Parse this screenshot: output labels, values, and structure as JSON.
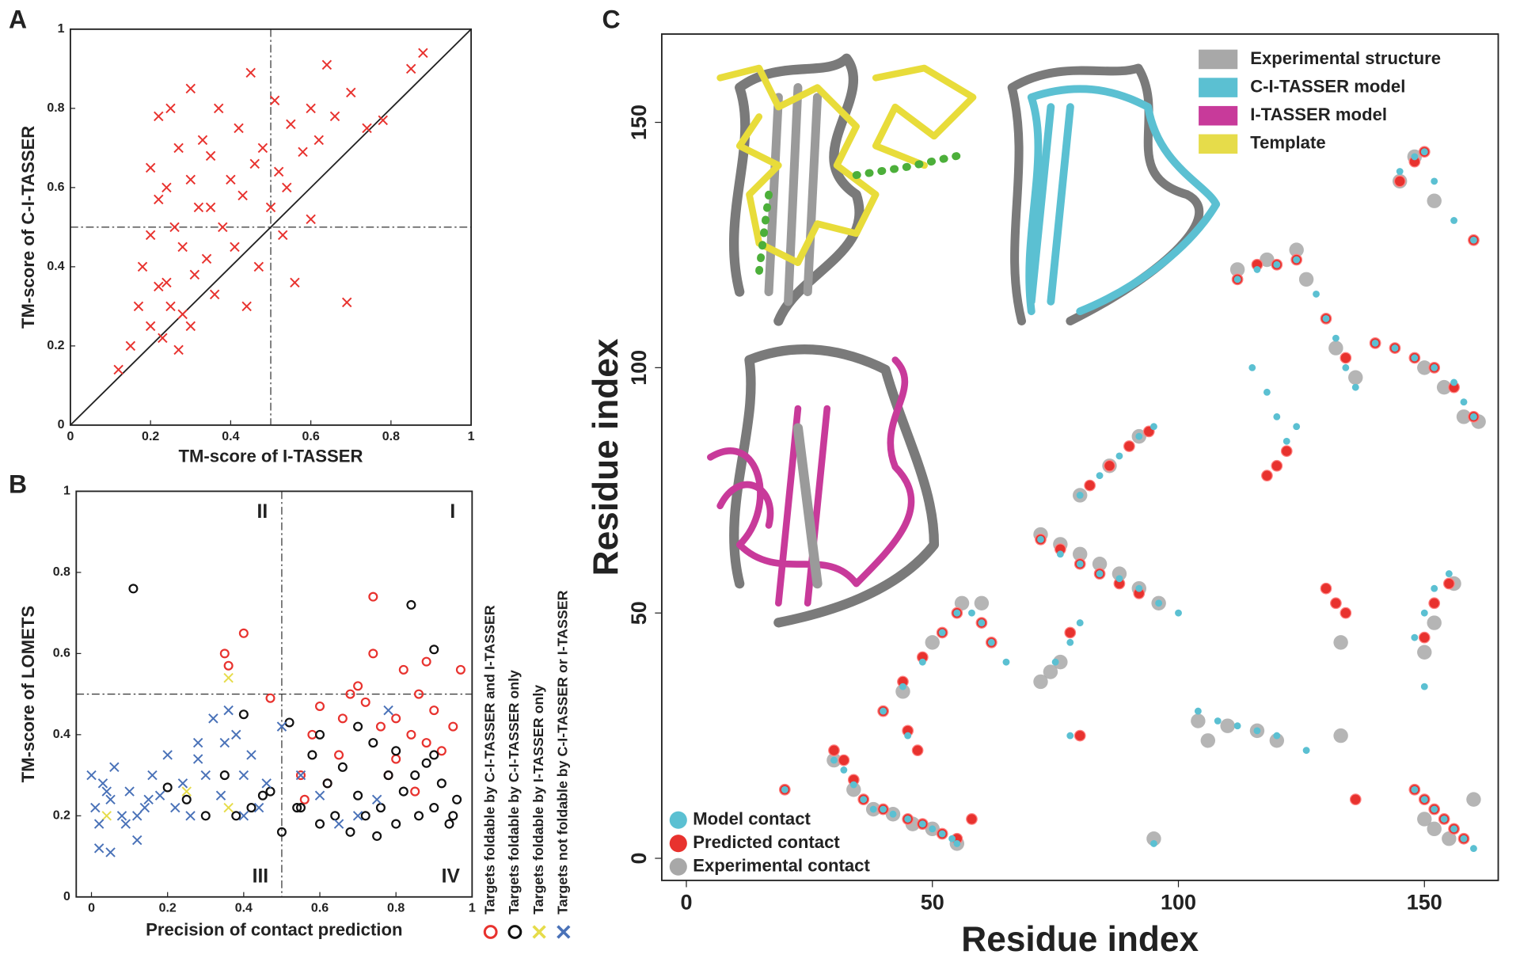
{
  "chart_data": [
    {
      "type": "scatter",
      "panel_label": "A",
      "xlabel": "TM-score of I-TASSER",
      "ylabel": "TM-score of C-I-TASSER",
      "xlim": [
        0,
        1
      ],
      "ylim": [
        0,
        1
      ],
      "xticks": [
        0,
        0.2,
        0.4,
        0.6,
        0.8,
        1
      ],
      "yticks": [
        0,
        0.2,
        0.4,
        0.6,
        0.8,
        1
      ],
      "threshold_x": 0.5,
      "threshold_y": 0.5,
      "diagonal": true,
      "color": "#e8322e",
      "marker": "x",
      "x": [
        0.12,
        0.15,
        0.17,
        0.18,
        0.2,
        0.2,
        0.22,
        0.22,
        0.23,
        0.24,
        0.25,
        0.25,
        0.26,
        0.27,
        0.28,
        0.28,
        0.3,
        0.3,
        0.31,
        0.32,
        0.33,
        0.34,
        0.35,
        0.36,
        0.37,
        0.38,
        0.4,
        0.41,
        0.42,
        0.43,
        0.45,
        0.46,
        0.47,
        0.48,
        0.5,
        0.51,
        0.52,
        0.53,
        0.55,
        0.56,
        0.58,
        0.6,
        0.62,
        0.64,
        0.66,
        0.7,
        0.74,
        0.78,
        0.85,
        0.88,
        0.2,
        0.24,
        0.3,
        0.35,
        0.27,
        0.22,
        0.44,
        0.54,
        0.6,
        0.69
      ],
      "y": [
        0.14,
        0.2,
        0.3,
        0.4,
        0.25,
        0.65,
        0.35,
        0.78,
        0.22,
        0.6,
        0.3,
        0.8,
        0.5,
        0.7,
        0.28,
        0.45,
        0.62,
        0.85,
        0.38,
        0.55,
        0.72,
        0.42,
        0.68,
        0.33,
        0.8,
        0.5,
        0.62,
        0.45,
        0.75,
        0.58,
        0.89,
        0.66,
        0.4,
        0.7,
        0.55,
        0.82,
        0.64,
        0.48,
        0.76,
        0.36,
        0.69,
        0.8,
        0.72,
        0.91,
        0.78,
        0.84,
        0.75,
        0.77,
        0.9,
        0.94,
        0.48,
        0.36,
        0.25,
        0.55,
        0.19,
        0.57,
        0.3,
        0.6,
        0.52,
        0.31
      ]
    },
    {
      "type": "scatter",
      "panel_label": "B",
      "xlabel": "Precision of contact prediction",
      "ylabel": "TM-score of LOMETS",
      "xlim": [
        -0.04,
        1.0
      ],
      "ylim": [
        0,
        1
      ],
      "xticks": [
        0,
        0.2,
        0.4,
        0.6,
        0.8,
        1
      ],
      "yticks": [
        0,
        0.2,
        0.4,
        0.6,
        0.8,
        1
      ],
      "threshold_x": 0.5,
      "threshold_y": 0.5,
      "legend": "right",
      "quadrant_labels": [
        "I",
        "II",
        "III",
        "IV"
      ],
      "series": [
        {
          "name": "Targets foldable by C-I-TASSER and I-TASSER",
          "color": "#e8322e",
          "marker": "circle",
          "x": [
            0.35,
            0.36,
            0.4,
            0.47,
            0.55,
            0.6,
            0.65,
            0.7,
            0.72,
            0.74,
            0.76,
            0.8,
            0.82,
            0.84,
            0.86,
            0.88,
            0.9,
            0.95,
            0.62,
            0.68,
            0.78,
            0.85,
            0.92,
            0.56,
            0.74,
            0.88,
            0.97,
            0.66,
            0.8,
            0.58
          ],
          "y": [
            0.6,
            0.57,
            0.65,
            0.49,
            0.3,
            0.47,
            0.35,
            0.52,
            0.48,
            0.74,
            0.42,
            0.44,
            0.56,
            0.4,
            0.5,
            0.38,
            0.46,
            0.42,
            0.28,
            0.5,
            0.3,
            0.26,
            0.36,
            0.24,
            0.6,
            0.58,
            0.56,
            0.44,
            0.34,
            0.4
          ]
        },
        {
          "name": "Targets foldable by C-I-TASSER only",
          "color": "#111111",
          "marker": "circle",
          "x": [
            0.11,
            0.84,
            0.9,
            0.3,
            0.35,
            0.4,
            0.45,
            0.5,
            0.52,
            0.55,
            0.58,
            0.6,
            0.62,
            0.64,
            0.66,
            0.68,
            0.7,
            0.72,
            0.74,
            0.76,
            0.78,
            0.8,
            0.82,
            0.86,
            0.88,
            0.9,
            0.92,
            0.94,
            0.96,
            0.54,
            0.6,
            0.7,
            0.75,
            0.8,
            0.85,
            0.9,
            0.95,
            0.2,
            0.25,
            0.38,
            0.42,
            0.47
          ],
          "y": [
            0.76,
            0.72,
            0.61,
            0.2,
            0.3,
            0.45,
            0.25,
            0.16,
            0.43,
            0.22,
            0.35,
            0.18,
            0.28,
            0.2,
            0.32,
            0.16,
            0.25,
            0.2,
            0.38,
            0.22,
            0.3,
            0.18,
            0.26,
            0.2,
            0.33,
            0.22,
            0.28,
            0.18,
            0.24,
            0.22,
            0.4,
            0.42,
            0.15,
            0.36,
            0.3,
            0.35,
            0.2,
            0.27,
            0.24,
            0.2,
            0.22,
            0.26
          ]
        },
        {
          "name": "Targets foldable by I-TASSER only",
          "color": "#e6dc4a",
          "marker": "x",
          "x": [
            0.36,
            0.25,
            0.04,
            0.36
          ],
          "y": [
            0.54,
            0.26,
            0.2,
            0.22
          ]
        },
        {
          "name": "Targets not foldable by C-I-TASSER or I-TASSER",
          "color": "#4a72b8",
          "marker": "x",
          "x": [
            0,
            0.01,
            0.02,
            0.03,
            0.05,
            0.06,
            0.08,
            0.1,
            0.12,
            0.14,
            0.16,
            0.18,
            0.2,
            0.22,
            0.24,
            0.26,
            0.28,
            0.3,
            0.32,
            0.34,
            0.36,
            0.38,
            0.4,
            0.42,
            0.44,
            0.46,
            0.5,
            0.55,
            0.6,
            0.65,
            0.7,
            0.75,
            0.78,
            0.02,
            0.04,
            0.09,
            0.15,
            0.28,
            0.35,
            0.4,
            0.05,
            0.12
          ],
          "y": [
            0.3,
            0.22,
            0.18,
            0.28,
            0.24,
            0.32,
            0.2,
            0.26,
            0.14,
            0.22,
            0.3,
            0.25,
            0.35,
            0.22,
            0.28,
            0.2,
            0.38,
            0.3,
            0.44,
            0.25,
            0.46,
            0.4,
            0.3,
            0.35,
            0.22,
            0.28,
            0.42,
            0.3,
            0.25,
            0.18,
            0.2,
            0.24,
            0.46,
            0.12,
            0.26,
            0.18,
            0.24,
            0.34,
            0.38,
            0.2,
            0.11,
            0.2
          ]
        }
      ]
    },
    {
      "type": "contact-map",
      "panel_label": "C",
      "xlabel": "Residue index",
      "ylabel": "Residue index",
      "xlim": [
        -5,
        165
      ],
      "ylim": [
        -4.5,
        168
      ],
      "xticks": [
        0,
        50,
        100,
        150
      ],
      "yticks": [
        0,
        50,
        100,
        150
      ],
      "legend": "lower left",
      "structure_legend": [
        {
          "name": "Experimental structure",
          "color": "#a8a8a8"
        },
        {
          "name": "C-I-TASSER model",
          "color": "#5bc0d2"
        },
        {
          "name": "I-TASSER model",
          "color": "#c83a9a"
        },
        {
          "name": "Template",
          "color": "#e6dc4a"
        }
      ],
      "series": [
        {
          "name": "Model contact",
          "color": "#5bc0d2",
          "marker": "small-dot",
          "x": [
            30,
            32,
            34,
            36,
            38,
            40,
            42,
            45,
            48,
            50,
            52,
            54,
            55,
            40,
            44,
            48,
            52,
            55,
            45,
            80,
            84,
            88,
            92,
            95,
            72,
            76,
            80,
            84,
            88,
            92,
            96,
            100,
            58,
            60,
            62,
            65,
            75,
            78,
            80,
            78,
            104,
            108,
            112,
            116,
            120,
            112,
            116,
            120,
            124,
            128,
            130,
            132,
            134,
            136,
            140,
            144,
            148,
            152,
            156,
            158,
            160,
            115,
            118,
            120,
            122,
            145,
            148,
            150,
            152,
            156,
            160,
            148,
            150,
            152,
            155,
            150,
            148,
            150,
            152,
            154,
            156,
            158,
            160,
            95,
            20,
            124,
            126
          ],
          "y": [
            20,
            18,
            15,
            12,
            10,
            10,
            9,
            8,
            7,
            6,
            5,
            4,
            3,
            30,
            35,
            40,
            46,
            50,
            25,
            74,
            78,
            82,
            86,
            88,
            65,
            62,
            60,
            58,
            57,
            55,
            52,
            50,
            50,
            48,
            44,
            40,
            40,
            44,
            48,
            25,
            30,
            28,
            27,
            26,
            25,
            118,
            120,
            121,
            122,
            115,
            110,
            106,
            100,
            96,
            105,
            104,
            102,
            100,
            97,
            93,
            90,
            100,
            95,
            90,
            85,
            140,
            143,
            144,
            138,
            130,
            126,
            45,
            50,
            55,
            58,
            35,
            14,
            12,
            10,
            8,
            6,
            4,
            2,
            3,
            14,
            88,
            22
          ]
        },
        {
          "name": "Predicted contact",
          "color": "#e8322e",
          "marker": "ringed-dot",
          "x": [
            30,
            32,
            34,
            36,
            40,
            45,
            48,
            52,
            55,
            40,
            44,
            48,
            52,
            55,
            45,
            47,
            82,
            86,
            90,
            94,
            72,
            76,
            80,
            84,
            88,
            92,
            60,
            62,
            78,
            80,
            130,
            132,
            134,
            112,
            116,
            120,
            124,
            130,
            134,
            140,
            144,
            148,
            152,
            156,
            160,
            118,
            120,
            122,
            145,
            148,
            150,
            160,
            150,
            152,
            155,
            148,
            150,
            152,
            154,
            156,
            158,
            20,
            58,
            136
          ],
          "y": [
            22,
            20,
            16,
            12,
            10,
            8,
            7,
            5,
            4,
            30,
            36,
            41,
            46,
            50,
            26,
            22,
            76,
            80,
            84,
            87,
            65,
            63,
            60,
            58,
            56,
            54,
            48,
            44,
            46,
            25,
            55,
            52,
            50,
            118,
            121,
            121,
            122,
            110,
            102,
            105,
            104,
            102,
            100,
            96,
            90,
            78,
            80,
            83,
            138,
            142,
            144,
            126,
            45,
            52,
            56,
            14,
            12,
            10,
            8,
            6,
            4,
            14,
            8,
            12
          ]
        },
        {
          "name": "Experimental contact",
          "color": "#a8a8a8",
          "marker": "large-dot",
          "x": [
            30,
            34,
            38,
            42,
            46,
            50,
            55,
            44,
            50,
            56,
            60,
            72,
            76,
            80,
            84,
            88,
            92,
            96,
            80,
            86,
            92,
            76,
            74,
            72,
            104,
            110,
            116,
            120,
            112,
            118,
            124,
            126,
            132,
            136,
            150,
            154,
            158,
            148,
            150,
            152,
            156,
            160,
            150,
            152,
            155,
            133,
            133,
            95,
            106,
            145,
            152,
            161
          ],
          "y": [
            20,
            14,
            10,
            9,
            7,
            6,
            3,
            34,
            44,
            52,
            52,
            66,
            64,
            62,
            60,
            58,
            55,
            52,
            74,
            80,
            86,
            40,
            38,
            36,
            28,
            27,
            26,
            24,
            120,
            122,
            124,
            118,
            104,
            98,
            100,
            96,
            90,
            143,
            42,
            48,
            56,
            12,
            8,
            6,
            4,
            44,
            25,
            4,
            24,
            138,
            134,
            89
          ]
        }
      ]
    }
  ]
}
